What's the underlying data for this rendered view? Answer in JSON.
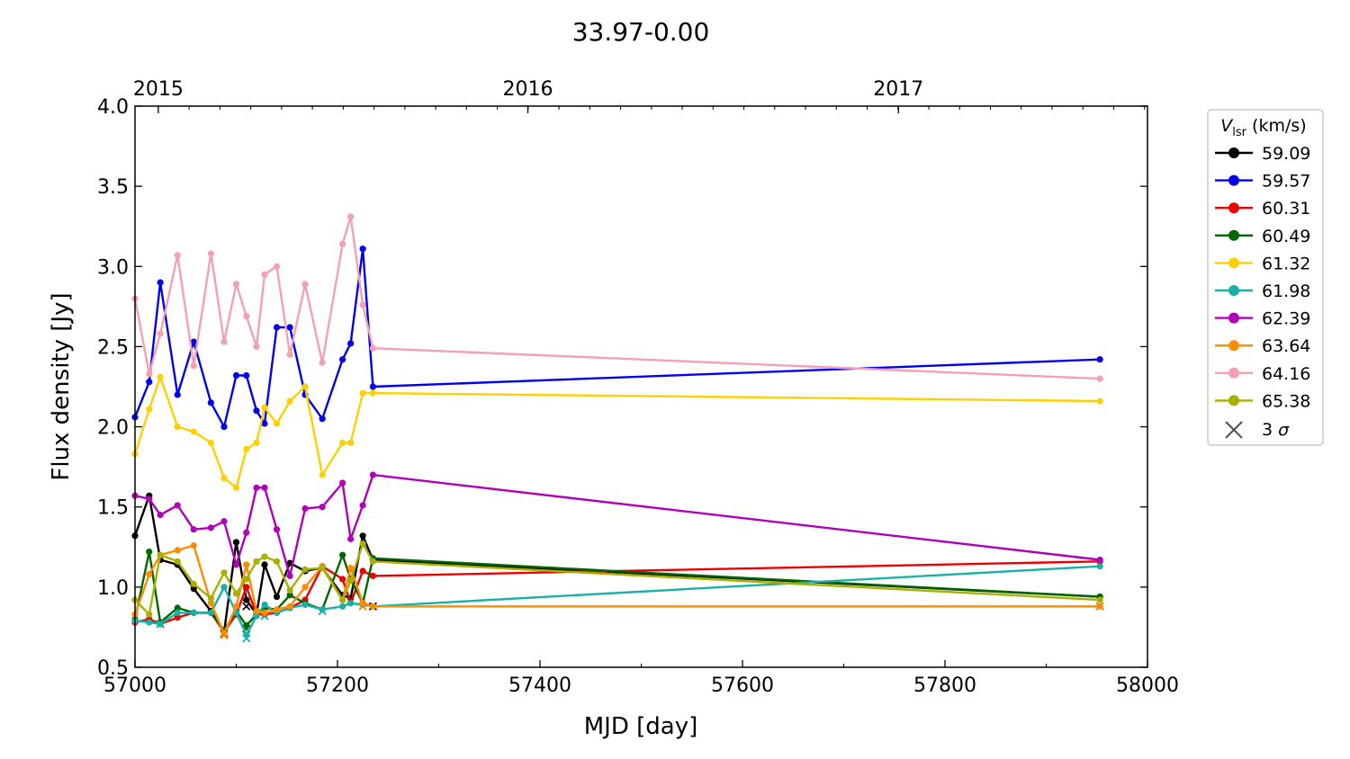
{
  "chart_data": {
    "type": "line",
    "title": "33.97-0.00",
    "xlabel": "MJD [day]",
    "ylabel": "Flux density [Jy]",
    "xlim": [
      57000,
      58000
    ],
    "ylim": [
      0.5,
      4.0
    ],
    "xticks": [
      57000,
      57200,
      57400,
      57600,
      57800,
      58000
    ],
    "yticks": [
      "0.5",
      "1.0",
      "1.5",
      "2.0",
      "2.5",
      "3.0",
      "3.5",
      "4.0"
    ],
    "top_axis": {
      "ticks": [
        {
          "label": "2015",
          "mjd": 57023
        },
        {
          "label": "2016",
          "mjd": 57388
        },
        {
          "label": "2017",
          "mjd": 57754
        }
      ]
    },
    "legend": {
      "title": "V_lsr (km/s)",
      "title_main": "V",
      "title_sub": "lsr",
      "title_rest": " (km/s)",
      "placement": "outside-right",
      "limit_label": "3 σ",
      "limit_label_main": "3 ",
      "limit_label_sym": "σ"
    },
    "series": [
      {
        "name": "59.09",
        "color": "#000000",
        "points": [
          [
            57000,
            1.32
          ],
          [
            57014,
            1.57
          ],
          [
            57025,
            1.17
          ],
          [
            57042,
            1.14
          ],
          [
            57058,
            0.99
          ],
          [
            57075,
            0.85
          ],
          [
            57088,
            0.72
          ],
          [
            57100,
            1.28
          ],
          [
            57110,
            0.92
          ],
          [
            57120,
            0.83
          ],
          [
            57128,
            1.14
          ],
          [
            57140,
            0.94
          ],
          [
            57153,
            1.15
          ],
          [
            57168,
            1.1
          ],
          [
            57185,
            1.12
          ],
          [
            57205,
            0.95
          ],
          [
            57213,
            0.93
          ],
          [
            57225,
            1.32
          ],
          [
            57235,
            1.17
          ],
          [
            57953,
            0.94
          ]
        ],
        "limits": [
          [
            57110,
            0.88
          ],
          [
            57235,
            0.88
          ],
          [
            57953,
            0.88
          ]
        ]
      },
      {
        "name": "59.57",
        "color": "#0000ee",
        "points": [
          [
            57000,
            2.06
          ],
          [
            57014,
            2.28
          ],
          [
            57025,
            2.9
          ],
          [
            57042,
            2.2
          ],
          [
            57058,
            2.53
          ],
          [
            57075,
            2.15
          ],
          [
            57088,
            2.0
          ],
          [
            57100,
            2.32
          ],
          [
            57110,
            2.32
          ],
          [
            57120,
            2.1
          ],
          [
            57128,
            2.02
          ],
          [
            57140,
            2.62
          ],
          [
            57153,
            2.62
          ],
          [
            57168,
            2.2
          ],
          [
            57185,
            2.05
          ],
          [
            57205,
            2.42
          ],
          [
            57213,
            2.52
          ],
          [
            57225,
            3.11
          ],
          [
            57235,
            2.25
          ],
          [
            57953,
            2.42
          ]
        ],
        "limits": []
      },
      {
        "name": "60.31",
        "color": "#ee0000",
        "points": [
          [
            57000,
            0.78
          ],
          [
            57014,
            0.8
          ],
          [
            57025,
            0.77
          ],
          [
            57042,
            0.81
          ],
          [
            57058,
            0.84
          ],
          [
            57075,
            0.84
          ],
          [
            57088,
            0.72
          ],
          [
            57100,
            0.83
          ],
          [
            57110,
            1.0
          ],
          [
            57120,
            0.83
          ],
          [
            57128,
            0.83
          ],
          [
            57140,
            0.84
          ],
          [
            57153,
            0.87
          ],
          [
            57168,
            0.92
          ],
          [
            57185,
            1.13
          ],
          [
            57205,
            1.05
          ],
          [
            57213,
            0.9
          ],
          [
            57225,
            1.1
          ],
          [
            57235,
            1.07
          ],
          [
            57953,
            1.16
          ]
        ],
        "limits": [
          [
            57025,
            0.77
          ],
          [
            57088,
            0.71
          ]
        ]
      },
      {
        "name": "60.49",
        "color": "#006600",
        "points": [
          [
            57000,
            0.8
          ],
          [
            57014,
            1.22
          ],
          [
            57025,
            0.78
          ],
          [
            57042,
            0.87
          ],
          [
            57058,
            0.84
          ],
          [
            57075,
            0.84
          ],
          [
            57088,
            0.73
          ],
          [
            57100,
            0.85
          ],
          [
            57110,
            0.76
          ],
          [
            57120,
            0.83
          ],
          [
            57128,
            0.87
          ],
          [
            57140,
            0.86
          ],
          [
            57153,
            0.95
          ],
          [
            57168,
            0.9
          ],
          [
            57185,
            0.86
          ],
          [
            57205,
            1.2
          ],
          [
            57213,
            1.05
          ],
          [
            57225,
            0.9
          ],
          [
            57235,
            1.18
          ],
          [
            57953,
            0.94
          ]
        ],
        "limits": [
          [
            57025,
            0.77
          ],
          [
            57110,
            0.74
          ]
        ]
      },
      {
        "name": "61.32",
        "color": "#ffd000",
        "points": [
          [
            57000,
            1.83
          ],
          [
            57014,
            2.11
          ],
          [
            57025,
            2.31
          ],
          [
            57042,
            2.0
          ],
          [
            57058,
            1.97
          ],
          [
            57075,
            1.9
          ],
          [
            57088,
            1.68
          ],
          [
            57100,
            1.62
          ],
          [
            57110,
            1.86
          ],
          [
            57120,
            1.9
          ],
          [
            57128,
            2.12
          ],
          [
            57140,
            2.02
          ],
          [
            57153,
            2.16
          ],
          [
            57168,
            2.25
          ],
          [
            57185,
            1.7
          ],
          [
            57205,
            1.9
          ],
          [
            57213,
            1.9
          ],
          [
            57225,
            2.21
          ],
          [
            57235,
            2.21
          ],
          [
            57953,
            2.16
          ]
        ],
        "limits": []
      },
      {
        "name": "61.98",
        "color": "#1ab0a8",
        "points": [
          [
            57000,
            0.79
          ],
          [
            57014,
            0.78
          ],
          [
            57025,
            0.77
          ],
          [
            57042,
            0.84
          ],
          [
            57058,
            0.84
          ],
          [
            57075,
            0.84
          ],
          [
            57088,
            1.0
          ],
          [
            57100,
            0.84
          ],
          [
            57110,
            0.7
          ],
          [
            57120,
            0.82
          ],
          [
            57128,
            0.89
          ],
          [
            57140,
            0.84
          ],
          [
            57153,
            0.87
          ],
          [
            57168,
            0.89
          ],
          [
            57185,
            0.86
          ],
          [
            57205,
            0.88
          ],
          [
            57213,
            0.9
          ],
          [
            57225,
            0.89
          ],
          [
            57235,
            0.88
          ],
          [
            57953,
            1.13
          ]
        ],
        "limits": [
          [
            57025,
            0.77
          ],
          [
            57110,
            0.68
          ],
          [
            57128,
            0.82
          ],
          [
            57185,
            0.85
          ],
          [
            57225,
            0.88
          ]
        ]
      },
      {
        "name": "62.39",
        "color": "#b000b8",
        "points": [
          [
            57000,
            1.57
          ],
          [
            57014,
            1.55
          ],
          [
            57025,
            1.45
          ],
          [
            57042,
            1.51
          ],
          [
            57058,
            1.36
          ],
          [
            57075,
            1.37
          ],
          [
            57088,
            1.41
          ],
          [
            57100,
            1.14
          ],
          [
            57110,
            1.34
          ],
          [
            57120,
            1.62
          ],
          [
            57128,
            1.62
          ],
          [
            57140,
            1.36
          ],
          [
            57153,
            1.07
          ],
          [
            57168,
            1.49
          ],
          [
            57185,
            1.5
          ],
          [
            57205,
            1.65
          ],
          [
            57213,
            1.3
          ],
          [
            57225,
            1.51
          ],
          [
            57235,
            1.7
          ],
          [
            57953,
            1.17
          ]
        ],
        "limits": []
      },
      {
        "name": "63.64",
        "color": "#ff8c00",
        "points": [
          [
            57000,
            0.83
          ],
          [
            57014,
            1.08
          ],
          [
            57025,
            1.2
          ],
          [
            57042,
            1.23
          ],
          [
            57058,
            1.26
          ],
          [
            57075,
            0.9
          ],
          [
            57088,
            0.71
          ],
          [
            57100,
            0.88
          ],
          [
            57110,
            1.14
          ],
          [
            57120,
            0.85
          ],
          [
            57128,
            0.84
          ],
          [
            57140,
            0.86
          ],
          [
            57153,
            0.88
          ],
          [
            57168,
            1.0
          ],
          [
            57185,
            1.13
          ],
          [
            57205,
            0.92
          ],
          [
            57213,
            1.12
          ],
          [
            57225,
            0.9
          ],
          [
            57235,
            0.88
          ],
          [
            57953,
            0.88
          ]
        ],
        "limits": [
          [
            57088,
            0.7
          ],
          [
            57225,
            0.88
          ],
          [
            57953,
            0.88
          ]
        ]
      },
      {
        "name": "64.16",
        "color": "#f4a0b4",
        "points": [
          [
            57000,
            2.8
          ],
          [
            57014,
            2.33
          ],
          [
            57025,
            2.58
          ],
          [
            57042,
            3.07
          ],
          [
            57058,
            2.38
          ],
          [
            57075,
            3.08
          ],
          [
            57088,
            2.53
          ],
          [
            57100,
            2.89
          ],
          [
            57110,
            2.69
          ],
          [
            57120,
            2.5
          ],
          [
            57128,
            2.95
          ],
          [
            57140,
            3.0
          ],
          [
            57153,
            2.45
          ],
          [
            57168,
            2.89
          ],
          [
            57185,
            2.4
          ],
          [
            57205,
            3.14
          ],
          [
            57213,
            3.31
          ],
          [
            57225,
            2.76
          ],
          [
            57235,
            2.49
          ],
          [
            57953,
            2.3
          ]
        ],
        "limits": []
      },
      {
        "name": "65.38",
        "color": "#a8b000",
        "points": [
          [
            57000,
            0.92
          ],
          [
            57014,
            0.83
          ],
          [
            57025,
            1.2
          ],
          [
            57042,
            1.16
          ],
          [
            57058,
            1.02
          ],
          [
            57075,
            0.93
          ],
          [
            57088,
            1.09
          ],
          [
            57100,
            0.96
          ],
          [
            57110,
            1.05
          ],
          [
            57120,
            1.16
          ],
          [
            57128,
            1.19
          ],
          [
            57140,
            1.16
          ],
          [
            57153,
            0.98
          ],
          [
            57168,
            1.11
          ],
          [
            57185,
            1.12
          ],
          [
            57205,
            0.92
          ],
          [
            57213,
            1.04
          ],
          [
            57225,
            1.27
          ],
          [
            57235,
            1.16
          ],
          [
            57953,
            0.92
          ]
        ],
        "limits": []
      }
    ]
  }
}
